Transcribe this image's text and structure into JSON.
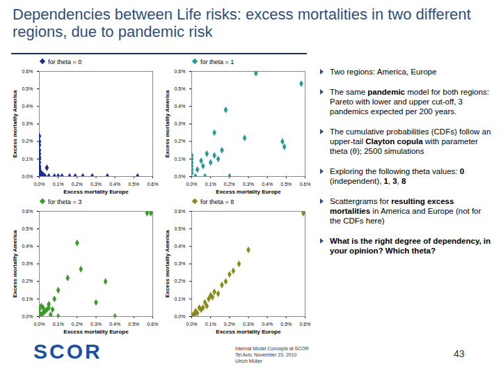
{
  "slide": {
    "title": "Dependencies between Life risks: excess mortalities in two different regions, due to pandemic risk",
    "bullets": [
      [
        "Two regions: America, Europe"
      ],
      [
        "The same ",
        {
          "bold": "pandemic"
        },
        " model for both regions: Pareto with lower and upper cut-off, 3 pandemics expected per 200 years."
      ],
      [
        "The cumulative probabilities (CDFs) follow an upper-tail ",
        {
          "bold": "Clayton copula"
        },
        " with parameter theta (θ); 2500 simulations"
      ],
      [
        "Exploring the following theta values: ",
        {
          "bold": "0"
        },
        " (independent), ",
        {
          "bold": "1"
        },
        ", ",
        {
          "bold": "3"
        },
        ", ",
        {
          "bold": "8"
        }
      ],
      [
        "Scattergrams for ",
        {
          "bold": "resulting excess mortalities"
        },
        " in America and Europe (not for the CDFs here)"
      ],
      [
        {
          "bold": "What is the right degree of dependency, in your opinion? Which theta?"
        }
      ]
    ],
    "logo": "SCOR",
    "footer": [
      "Internal Model Concepts at SCOR",
      "Tel Aviv, November 23, 2010",
      "Ulrich Müller"
    ],
    "page": "43"
  },
  "chart_data": [
    {
      "type": "scatter",
      "xlabel": "Excess mortality Europe",
      "ylabel": "Excess mortality America",
      "xlim": [
        0,
        0.6
      ],
      "ylim": [
        0,
        0.6
      ],
      "grid": false,
      "xticks": [
        {
          "value": 0,
          "label": "0.0%"
        },
        {
          "value": 0.1,
          "label": "0.1%"
        },
        {
          "value": 0.2,
          "label": "0.2%"
        },
        {
          "value": 0.3,
          "label": "0.3%"
        },
        {
          "value": 0.4,
          "label": "0.4%"
        },
        {
          "value": 0.5,
          "label": "0.5%"
        },
        {
          "value": 0.6,
          "label": "0.6%"
        }
      ],
      "yticks": [
        {
          "value": 0,
          "label": "0.0%"
        },
        {
          "value": 0.1,
          "label": "0.1%"
        },
        {
          "value": 0.2,
          "label": "0.2%"
        },
        {
          "value": 0.3,
          "label": "0.3%"
        },
        {
          "value": 0.4,
          "label": "0.4%"
        },
        {
          "value": 0.5,
          "label": "0.5%"
        },
        {
          "value": 0.6,
          "label": "0.6%"
        }
      ],
      "series": [
        {
          "name": "for theta = 0",
          "color": "#1f2f8a",
          "marker": "diamond",
          "x": [
            0,
            0,
            0,
            0,
            0,
            0,
            0,
            0,
            0,
            0,
            0,
            0,
            0,
            0,
            0.01,
            0.03,
            0.05,
            0.08,
            0.1,
            0.12,
            0.16,
            0.19,
            0.23,
            0.28,
            0.36,
            0.52,
            0.01,
            0.02,
            0.04
          ],
          "y": [
            0.23,
            0.2,
            0.18,
            0.15,
            0.13,
            0.11,
            0.1,
            0.08,
            0.06,
            0.05,
            0.04,
            0.03,
            0.02,
            0.01,
            0,
            0,
            0,
            0,
            0,
            0,
            0,
            0,
            0,
            0,
            0,
            0,
            0.02,
            0.01,
            0.05
          ]
        }
      ]
    },
    {
      "type": "scatter",
      "xlabel": "Excess mortality Europe",
      "ylabel": "Excess mortality America",
      "xlim": [
        0,
        0.6
      ],
      "ylim": [
        0,
        0.6
      ],
      "grid": false,
      "xticks": [
        {
          "value": 0,
          "label": "0.0%"
        },
        {
          "value": 0.1,
          "label": "0.1%"
        },
        {
          "value": 0.2,
          "label": "0.2%"
        },
        {
          "value": 0.3,
          "label": "0.3%"
        },
        {
          "value": 0.4,
          "label": "0.4%"
        },
        {
          "value": 0.5,
          "label": "0.5%"
        },
        {
          "value": 0.6,
          "label": "0.6%"
        }
      ],
      "yticks": [
        {
          "value": 0,
          "label": "0.0%"
        },
        {
          "value": 0.1,
          "label": "0.1%"
        },
        {
          "value": 0.2,
          "label": "0.2%"
        },
        {
          "value": 0.3,
          "label": "0.3%"
        },
        {
          "value": 0.4,
          "label": "0.4%"
        },
        {
          "value": 0.5,
          "label": "0.5%"
        },
        {
          "value": 0.6,
          "label": "0.6%"
        }
      ],
      "series": [
        {
          "name": "for theta = 1",
          "color": "#2a9a96",
          "marker": "diamond",
          "x": [
            0.34,
            0.58,
            0.18,
            0.12,
            0.28,
            0.48,
            0.49,
            0.08,
            0.12,
            0.14,
            0.16,
            0.1,
            0.05,
            0.06,
            0.03,
            0,
            0,
            0,
            0,
            0,
            0,
            0.02,
            0.07,
            0.2
          ],
          "y": [
            0.59,
            0.53,
            0.38,
            0.25,
            0.22,
            0.2,
            0.17,
            0.13,
            0.12,
            0.1,
            0.15,
            0.08,
            0.09,
            0.06,
            0.04,
            0.02,
            0.04,
            0.06,
            0.08,
            0.1,
            0.12,
            0,
            0,
            0
          ]
        }
      ]
    },
    {
      "type": "scatter",
      "xlabel": "Excess mortality Europe",
      "ylabel": "Excess mortality America",
      "xlim": [
        0,
        0.6
      ],
      "ylim": [
        0,
        0.6
      ],
      "grid": false,
      "xticks": [
        {
          "value": 0,
          "label": "0.0%"
        },
        {
          "value": 0.1,
          "label": "0.1%"
        },
        {
          "value": 0.2,
          "label": "0.2%"
        },
        {
          "value": 0.3,
          "label": "0.3%"
        },
        {
          "value": 0.4,
          "label": "0.4%"
        },
        {
          "value": 0.5,
          "label": "0.5%"
        },
        {
          "value": 0.6,
          "label": "0.6%"
        }
      ],
      "yticks": [
        {
          "value": 0,
          "label": "0.0%"
        },
        {
          "value": 0.1,
          "label": "0.1%"
        },
        {
          "value": 0.2,
          "label": "0.2%"
        },
        {
          "value": 0.3,
          "label": "0.3%"
        },
        {
          "value": 0.4,
          "label": "0.4%"
        },
        {
          "value": 0.5,
          "label": "0.5%"
        },
        {
          "value": 0.6,
          "label": "0.6%"
        }
      ],
      "series": [
        {
          "name": "for theta = 3",
          "color": "#3a9a2a",
          "marker": "diamond",
          "x": [
            0.57,
            0.59,
            0.2,
            0.22,
            0.15,
            0.35,
            0.1,
            0.08,
            0.3,
            0.05,
            0.02,
            0.04,
            0.03,
            0.01,
            0.02,
            0.06,
            0.1,
            0.4,
            0.05,
            0.07,
            0,
            0,
            0.01
          ],
          "y": [
            0.59,
            0.59,
            0.42,
            0.27,
            0.22,
            0.2,
            0.15,
            0.1,
            0.08,
            0.07,
            0.05,
            0.04,
            0.03,
            0.06,
            0.02,
            0.01,
            0,
            0,
            0.05,
            0.04,
            0.02,
            0.04,
            0.01
          ]
        }
      ]
    },
    {
      "type": "scatter",
      "xlabel": "Excess mortality Europe",
      "ylabel": "Excess mortality America",
      "xlim": [
        0,
        0.6
      ],
      "ylim": [
        0,
        0.6
      ],
      "grid": false,
      "xticks": [
        {
          "value": 0,
          "label": "0.0%"
        },
        {
          "value": 0.1,
          "label": "0.1%"
        },
        {
          "value": 0.2,
          "label": "0.2%"
        },
        {
          "value": 0.3,
          "label": "0.3%"
        },
        {
          "value": 0.4,
          "label": "0.4%"
        },
        {
          "value": 0.5,
          "label": "0.5%"
        },
        {
          "value": 0.6,
          "label": "0.6%"
        }
      ],
      "yticks": [
        {
          "value": 0,
          "label": "0.0%"
        },
        {
          "value": 0.1,
          "label": "0.1%"
        },
        {
          "value": 0.2,
          "label": "0.2%"
        },
        {
          "value": 0.3,
          "label": "0.3%"
        },
        {
          "value": 0.4,
          "label": "0.4%"
        },
        {
          "value": 0.5,
          "label": "0.5%"
        },
        {
          "value": 0.6,
          "label": "0.6%"
        }
      ],
      "series": [
        {
          "name": "for theta = 8",
          "color": "#8a8a1a",
          "marker": "diamond",
          "x": [
            0.01,
            0.02,
            0.03,
            0.04,
            0.06,
            0.07,
            0.09,
            0.11,
            0.14,
            0.18,
            0.2,
            0.22,
            0.25,
            0.12,
            0.08,
            0.05,
            0.02,
            0,
            0.01,
            0.3,
            0.1,
            0.16,
            0.59
          ],
          "y": [
            0.01,
            0.02,
            0.02,
            0.05,
            0.05,
            0.08,
            0.1,
            0.11,
            0.13,
            0.2,
            0.24,
            0.26,
            0.3,
            0.14,
            0.06,
            0.04,
            0.03,
            0.01,
            0,
            0.38,
            0.12,
            0.18,
            0.59
          ]
        }
      ]
    }
  ]
}
